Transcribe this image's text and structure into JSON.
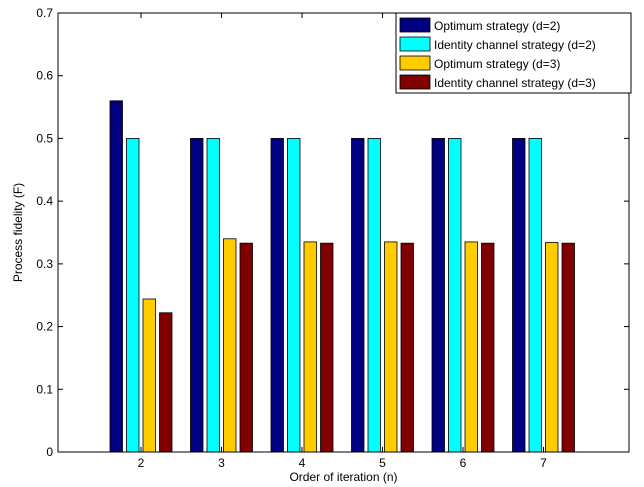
{
  "chart_data": {
    "type": "bar",
    "categories": [
      "2",
      "3",
      "4",
      "5",
      "6",
      "7"
    ],
    "series": [
      {
        "name": "Optimum strategy (d=2)",
        "color": "#000080",
        "values": [
          0.56,
          0.5,
          0.5,
          0.5,
          0.5,
          0.5
        ]
      },
      {
        "name": "Identity channel strategy (d=2)",
        "color": "#00FFFF",
        "values": [
          0.5,
          0.5,
          0.5,
          0.5,
          0.5,
          0.5
        ]
      },
      {
        "name": "Optimum strategy (d=3)",
        "color": "#FFCC00",
        "values": [
          0.244,
          0.34,
          0.335,
          0.335,
          0.335,
          0.334
        ]
      },
      {
        "name": "Identity channel strategy (d=3)",
        "color": "#800000",
        "values": [
          0.222,
          0.333,
          0.333,
          0.333,
          0.333,
          0.333
        ]
      }
    ],
    "xlabel": "Order of iteration (n)",
    "ylabel": "Process fidelity (F)",
    "ylim": [
      0,
      0.7
    ],
    "yticks": [
      "0",
      "0.1",
      "0.2",
      "0.3",
      "0.4",
      "0.5",
      "0.6",
      "0.7"
    ],
    "grid": false,
    "legend_position": "top-right"
  }
}
